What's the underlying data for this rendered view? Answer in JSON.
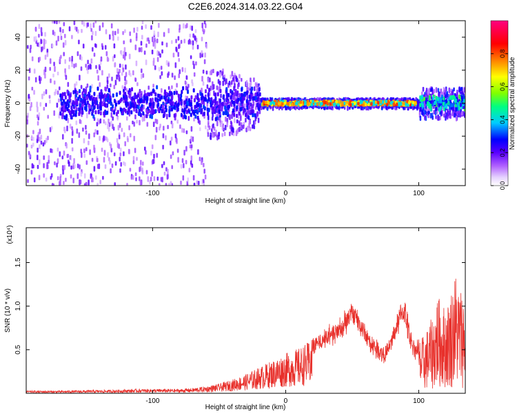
{
  "title": "C2E6.2024.314.03.22.G04",
  "chart_data": [
    {
      "type": "heatmap",
      "xlabel": "Height of straight line (km)",
      "ylabel": "Frequency (Hz)",
      "xlim": [
        -195,
        135
      ],
      "ylim": [
        -50,
        50
      ],
      "xticks": [
        -100,
        0,
        100
      ],
      "yticks": [
        -40,
        -20,
        0,
        20,
        40
      ],
      "colorbar": {
        "label": "Normalized spectral amplitude",
        "range": [
          0,
          1
        ],
        "ticks": [
          "0.0",
          "0.2",
          "0.4",
          "0.6",
          "0.8"
        ],
        "colormap": [
          "#ffffff",
          "#e6d3ff",
          "#b060ff",
          "#5a00ff",
          "#0000ff",
          "#00ccff",
          "#00ff80",
          "#80ff00",
          "#ffff00",
          "#ff8000",
          "#ff0000",
          "#ff0080"
        ]
      },
      "ridge": {
        "frequency_hz": 0,
        "strong_segment_km": [
          -20,
          97
        ],
        "noisy_segment_km": [
          -195,
          -20
        ]
      }
    },
    {
      "type": "line",
      "xlabel": "Height of straight line (km)",
      "ylabel": "SNR (10 * v/v)",
      "multiplier": "(x10⁴)",
      "xlim": [
        -195,
        135
      ],
      "ylim": [
        0,
        1.9
      ],
      "xticks": [
        -100,
        0,
        100
      ],
      "yticks": [
        "0.5",
        "1.0",
        "1.5"
      ],
      "line_color": "#e8302b",
      "envelope_x": [
        -195,
        -170,
        -150,
        -130,
        -110,
        -90,
        -80,
        -70,
        -60,
        -50,
        -40,
        -30,
        -20,
        -10,
        0,
        10,
        20,
        30,
        40,
        45,
        48,
        50,
        53,
        57,
        62,
        66,
        70,
        73,
        75,
        78,
        82,
        86,
        88,
        90,
        92,
        95,
        98,
        100,
        103,
        106,
        109,
        112,
        114,
        117,
        120,
        123,
        126,
        128,
        130,
        133,
        135
      ],
      "envelope_y": [
        0.03,
        0.03,
        0.035,
        0.04,
        0.05,
        0.05,
        0.05,
        0.06,
        0.08,
        0.11,
        0.16,
        0.22,
        0.3,
        0.38,
        0.46,
        0.52,
        0.62,
        0.72,
        0.82,
        0.92,
        1.0,
        1.05,
        1.0,
        0.85,
        0.7,
        0.62,
        0.56,
        0.52,
        0.5,
        0.6,
        0.8,
        1.0,
        1.08,
        1.02,
        0.85,
        0.65,
        0.56,
        0.6,
        0.62,
        0.7,
        0.8,
        0.9,
        1.1,
        1.0,
        0.95,
        1.05,
        1.25,
        1.35,
        1.2,
        1.15,
        1.0
      ]
    }
  ]
}
